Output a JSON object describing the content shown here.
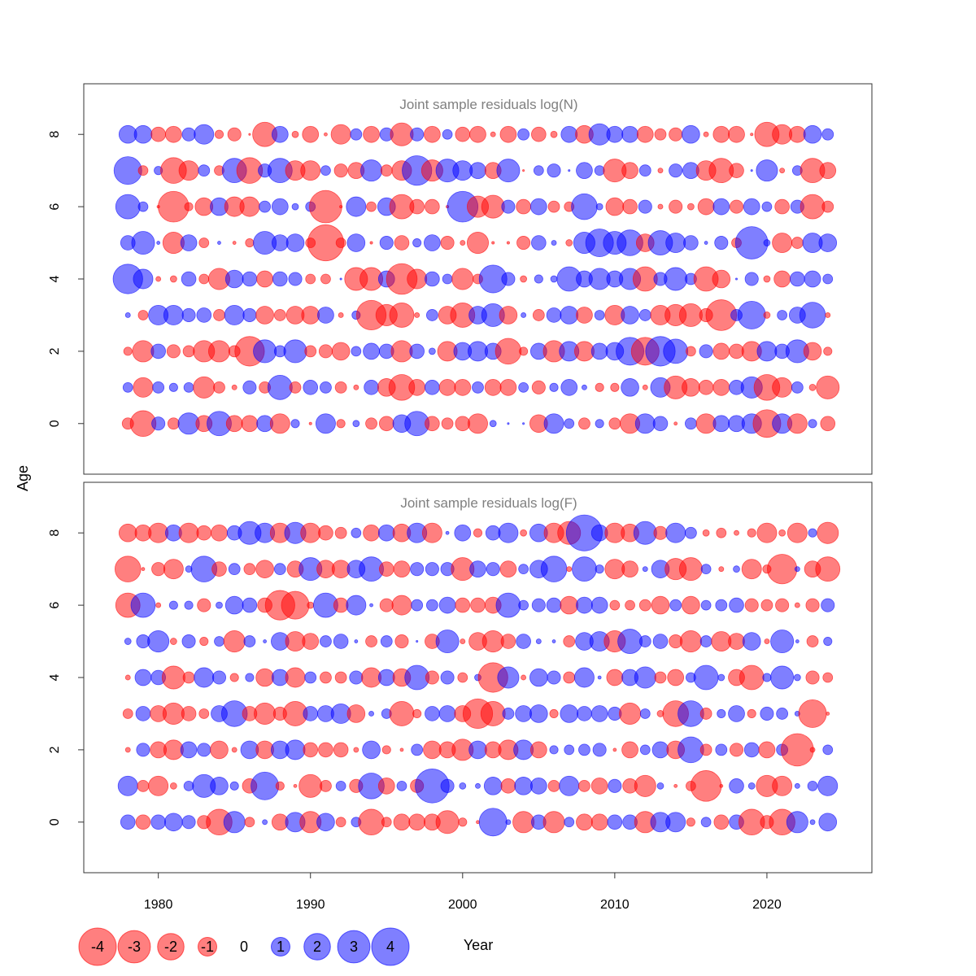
{
  "chart_data": {
    "type": "scatter",
    "subtype": "bubble",
    "xlabel": "Year",
    "ylabel": "Age",
    "xlim": [
      1975.1,
      2026.9
    ],
    "ylim": [
      -1.4,
      9.4
    ],
    "x_ticks": [
      "1980",
      "1990",
      "2000",
      "2010",
      "2020"
    ],
    "y_ticks": [
      "0",
      "2",
      "4",
      "6",
      "8"
    ],
    "years_from": 1978,
    "years_to": 2024,
    "colors": {
      "negative": "#ff0000",
      "positive": "#0000ff"
    },
    "legend": {
      "position": "bottom",
      "values": [
        "-4",
        "-3",
        "-2",
        "-1",
        "0",
        "1",
        "2",
        "3",
        "4"
      ]
    },
    "panels": [
      {
        "title": "Joint sample residuals log(N)",
        "ages": [
          [
            -0.37,
            -1.9,
            0.5,
            -0.37,
            1.3,
            -0.75,
            1.7,
            -0.75,
            -0.75,
            0.75,
            -1.1,
            0.2,
            -0.02,
            1.1,
            -0.2,
            0.12,
            -0.37,
            -0.6,
            0.9,
            1.7,
            -0.6,
            -0.37,
            -0.6,
            -1.1,
            0.12,
            0.01,
            0.01,
            -0.9,
            1.1,
            0.27,
            -0.37,
            0.2,
            -0.37,
            -1.1,
            1.1,
            0.6,
            -0.03,
            0.37,
            -1.1,
            0.75,
            0.75,
            1.1,
            -2.2,
            1.1,
            -1.1,
            0.2,
            -0.6
          ],
          [
            0.27,
            -1.1,
            0.37,
            0.2,
            0.27,
            -1.3,
            -0.37,
            -0.07,
            0.5,
            -0.37,
            1.7,
            -0.37,
            0.6,
            0.37,
            -0.37,
            -0.07,
            0.6,
            -0.9,
            -1.9,
            -0.75,
            0.6,
            -0.75,
            -0.75,
            0.37,
            -0.75,
            -0.75,
            0.27,
            -0.5,
            0.2,
            0.75,
            0.07,
            -0.2,
            -0.2,
            0.9,
            -0.07,
            1.1,
            -1.5,
            -0.9,
            -0.6,
            -0.75,
            0.6,
            1.3,
            -1.9,
            -1.1,
            0.37,
            -0.12,
            -1.5
          ],
          [
            -0.2,
            -1.3,
            0.6,
            -0.5,
            -0.37,
            -1.3,
            -1.3,
            -0.37,
            -2.5,
            1.5,
            0.37,
            1.5,
            -0.37,
            -0.5,
            -0.9,
            0.27,
            0.75,
            0.6,
            -1.3,
            0.6,
            0.12,
            -1.1,
            0.9,
            1.1,
            0.75,
            -1.9,
            -0.2,
            0.75,
            -1.3,
            1.1,
            -1.1,
            0.75,
            0.9,
            2.2,
            -2.2,
            2.5,
            1.7,
            -0.27,
            0.5,
            -0.75,
            -0.6,
            -1.1,
            1.1,
            0.6,
            1.5,
            -0.9,
            -0.2
          ],
          [
            0.07,
            -0.27,
            1.1,
            1.1,
            0.5,
            0.6,
            -0.37,
            1.1,
            0.5,
            -0.9,
            -0.37,
            -0.9,
            -0.9,
            0.75,
            -0.07,
            0.2,
            -2.5,
            -1.3,
            -1.7,
            -0.07,
            0.37,
            -0.9,
            -1.7,
            0.9,
            1.5,
            -0.9,
            0.07,
            -0.37,
            0.6,
            0.9,
            -0.75,
            0.27,
            -1.1,
            0.9,
            0.37,
            -1.1,
            -1.3,
            -1.5,
            -0.5,
            -2.7,
            0.37,
            2.2,
            -0.12,
            0.27,
            0.75,
            1.9,
            -0.07
          ],
          [
            2.5,
            1.1,
            -0.07,
            -0.12,
            0.6,
            -0.27,
            -1.3,
            0.9,
            0.6,
            -0.75,
            0.6,
            0.5,
            -0.27,
            -0.27,
            0.01,
            -1.5,
            -1.5,
            0.75,
            -2.7,
            -1.1,
            0.6,
            0.27,
            -1.3,
            -0.27,
            2.2,
            0.5,
            -0.12,
            0.2,
            0.12,
            1.7,
            0.75,
            1.3,
            0.75,
            1.3,
            -1.7,
            0.5,
            1.5,
            0.37,
            -1.7,
            -0.9,
            0.01,
            0.5,
            -0.12,
            -0.75,
            0.6,
            0.75,
            0.27
          ],
          [
            0.6,
            1.5,
            0.03,
            -1.3,
            0.75,
            -0.27,
            0.03,
            -0.03,
            -0.2,
            1.5,
            0.75,
            0.9,
            -0.27,
            -3.7,
            -0.27,
            0.9,
            -0.02,
            0.5,
            -0.6,
            0.2,
            0.75,
            -0.5,
            -0.07,
            -1.3,
            -0.02,
            -0.02,
            -0.5,
            0.6,
            0.07,
            -0.12,
            1.3,
            2.2,
            1.5,
            1.9,
            -0.9,
            1.7,
            1.1,
            0.6,
            0.03,
            0.5,
            -0.27,
            3.0,
            0.12,
            -1.1,
            -0.37,
            1.1,
            0.9
          ],
          [
            1.7,
            0.27,
            -0.02,
            -2.7,
            -0.2,
            -0.9,
            0.9,
            -1.1,
            -1.1,
            0.37,
            0.75,
            0.12,
            0.27,
            -3.0,
            -0.02,
            1.1,
            -0.27,
            0.9,
            -1.7,
            -0.6,
            -0.6,
            -0.02,
            2.7,
            -1.3,
            -1.5,
            0.5,
            -0.6,
            0.75,
            -0.37,
            -0.27,
            1.9,
            0.12,
            -0.9,
            -0.6,
            0.5,
            -0.07,
            -0.5,
            -0.12,
            -0.75,
            0.75,
            -0.5,
            0.75,
            0.27,
            -0.6,
            0.5,
            -1.7,
            -0.37
          ],
          [
            2.2,
            -0.27,
            0.2,
            -1.9,
            -1.1,
            0.37,
            -0.27,
            1.7,
            -1.9,
            0.5,
            1.7,
            -1.1,
            -1.1,
            0.27,
            -0.5,
            -0.75,
            1.3,
            -0.37,
            -1.1,
            2.5,
            -1.3,
            1.5,
            1.1,
            0.75,
            -0.75,
            1.5,
            -0.01,
            0.27,
            0.5,
            0.01,
            0.75,
            0.27,
            -1.5,
            -0.75,
            0.37,
            -0.07,
            0.5,
            0.75,
            -1.1,
            -1.7,
            -0.6,
            0.01,
            1.3,
            -0.07,
            0.27,
            -1.7,
            -0.75
          ],
          [
            0.9,
            0.9,
            -0.6,
            -0.75,
            0.5,
            1.1,
            -0.2,
            -0.5,
            -0.01,
            -1.7,
            0.75,
            -0.12,
            -0.75,
            -0.03,
            -1.1,
            0.37,
            -0.75,
            0.5,
            -1.5,
            0.5,
            -0.75,
            0.27,
            -0.6,
            -0.75,
            -0.07,
            -0.75,
            0.37,
            -0.6,
            -0.12,
            0.75,
            -0.9,
            1.3,
            0.75,
            0.75,
            -0.75,
            -0.37,
            -0.5,
            0.9,
            -0.07,
            -0.75,
            -0.75,
            -0.02,
            -1.7,
            -1.1,
            -0.75,
            0.9,
            0.37
          ]
        ]
      },
      {
        "title": "Joint sample residuals log(F)",
        "ages": [
          [
            0.6,
            -0.6,
            0.6,
            0.9,
            0.5,
            -0.5,
            -1.9,
            1.3,
            -0.27,
            0.07,
            -0.75,
            1.1,
            -1.3,
            0.9,
            -0.27,
            0.27,
            -1.9,
            -0.27,
            -0.75,
            -0.75,
            -0.75,
            -1.5,
            -0.2,
            -0.03,
            2.2,
            0.07,
            -1.3,
            0.6,
            -1.3,
            0.27,
            -0.75,
            -0.75,
            0.6,
            0.6,
            -1.3,
            1.1,
            1.1,
            -0.2,
            0.27,
            -0.6,
            0.6,
            -1.9,
            -0.5,
            -1.9,
            1.3,
            0.07,
            0.9
          ],
          [
            1.1,
            -0.37,
            -1.1,
            -0.12,
            0.27,
            1.5,
            0.9,
            0.2,
            -0.6,
            2.2,
            -0.2,
            -0.03,
            -1.5,
            -0.37,
            0.27,
            -0.5,
            1.9,
            -0.75,
            0.27,
            -0.5,
            3.3,
            0.5,
            0.12,
            0.07,
            0.9,
            -0.6,
            0.9,
            0.75,
            -0.37,
            1.1,
            -0.37,
            -0.75,
            0.5,
            -0.6,
            -1.3,
            0.12,
            -0.03,
            -0.27,
            -2.7,
            -0.03,
            0.6,
            0.12,
            -1.3,
            -1.1,
            0.07,
            0.27,
            1.1
          ],
          [
            -0.07,
            0.5,
            -0.75,
            -1.1,
            0.75,
            0.5,
            -0.9,
            -0.07,
            0.9,
            -0.9,
            0.9,
            1.1,
            -0.6,
            -0.6,
            -0.6,
            -0.07,
            0.9,
            -0.2,
            -0.03,
            0.37,
            -0.9,
            -0.75,
            -1.3,
            0.9,
            -0.75,
            -1.1,
            1.1,
            -0.75,
            0.2,
            0.27,
            0.37,
            0.5,
            -0.03,
            -0.75,
            0.27,
            0.75,
            -0.9,
            1.9,
            -0.37,
            0.37,
            -0.5,
            0.6,
            -0.75,
            0.37,
            -3.0,
            -0.07,
            0.27
          ],
          [
            -0.27,
            0.6,
            -0.75,
            -1.3,
            -0.6,
            -0.27,
            0.75,
            1.9,
            -0.6,
            -1.3,
            -0.5,
            -1.7,
            0.6,
            0.75,
            1.1,
            -0.9,
            0.07,
            0.27,
            -1.7,
            -0.2,
            0.6,
            0.75,
            -0.75,
            -2.5,
            -1.7,
            0.37,
            0.75,
            0.9,
            -0.2,
            0.9,
            0.6,
            0.75,
            0.5,
            -1.3,
            0.27,
            -0.12,
            -1.9,
            1.9,
            -0.37,
            0.2,
            0.75,
            -0.2,
            0.5,
            0.37,
            0.07,
            -2.2,
            -0.03
          ],
          [
            -0.07,
            0.75,
            0.6,
            -1.5,
            -0.37,
            1.1,
            0.5,
            -0.2,
            0.2,
            -0.9,
            0.75,
            -1.1,
            0.37,
            -0.37,
            -0.37,
            0.5,
            -1.1,
            0.75,
            -0.9,
            1.7,
            -0.5,
            0.5,
            -0.27,
            0.12,
            -2.5,
            1.3,
            -0.07,
            0.9,
            0.5,
            -0.37,
            1.1,
            0.03,
            -0.75,
            0.75,
            1.3,
            -0.37,
            -0.75,
            0.27,
            1.7,
            0.12,
            -0.75,
            -1.7,
            0.2,
            1.5,
            0.12,
            -0.5,
            -0.27
          ],
          [
            0.12,
            0.5,
            1.3,
            -0.12,
            0.5,
            -0.2,
            0.27,
            -1.3,
            0.37,
            0.03,
            0.9,
            -1.1,
            -0.75,
            0.37,
            0.6,
            0.03,
            -0.37,
            0.37,
            -0.5,
            0.01,
            -0.6,
            1.5,
            -0.07,
            -0.9,
            -1.3,
            -0.6,
            0.6,
            0.07,
            0.03,
            -0.37,
            0.9,
            1.1,
            -1.3,
            1.7,
            0.37,
            0.6,
            -0.5,
            -1.3,
            0.37,
            -1.1,
            -0.75,
            0.9,
            -0.07,
            1.5,
            0.03,
            -0.37,
            0.2
          ],
          [
            -1.7,
            1.7,
            -0.07,
            0.2,
            0.2,
            -0.5,
            0.12,
            0.9,
            0.6,
            -0.6,
            -2.5,
            -2.2,
            -0.12,
            1.7,
            -0.6,
            1.1,
            0.03,
            -0.5,
            -1.1,
            0.37,
            0.37,
            0.75,
            -0.6,
            -0.6,
            -0.75,
            1.7,
            0.27,
            0.5,
            0.6,
            -0.9,
            0.75,
            0.75,
            -0.27,
            -0.27,
            -0.37,
            -0.9,
            0.37,
            -0.9,
            0.27,
            0.37,
            0.6,
            -0.5,
            -0.37,
            -0.5,
            -0.07,
            -0.5,
            0.5
          ],
          [
            -1.9,
            -0.03,
            -0.5,
            -1.1,
            0.12,
            1.9,
            -0.6,
            0.37,
            -0.37,
            -0.9,
            0.37,
            -0.75,
            1.5,
            -0.9,
            -0.9,
            0.9,
            1.7,
            -0.6,
            -0.75,
            0.5,
            0.5,
            0.5,
            -1.5,
            0.75,
            0.5,
            -0.75,
            0.27,
            0.9,
            1.9,
            -0.07,
            1.7,
            0.2,
            -1.1,
            -0.75,
            0.07,
            0.9,
            -1.3,
            -1.5,
            0.27,
            -0.07,
            0.12,
            -1.1,
            -0.2,
            -2.5,
            0.07,
            -0.75,
            -1.7
          ],
          [
            -0.9,
            -0.75,
            -1.1,
            0.75,
            -1.1,
            -0.6,
            -0.75,
            0.6,
            1.5,
            1.1,
            -1.1,
            1.3,
            -1.1,
            -0.6,
            -0.37,
            0.27,
            -0.75,
            0.75,
            -0.9,
            1.1,
            -1.1,
            0.03,
            0.75,
            -0.2,
            0.6,
            1.1,
            -0.12,
            0.9,
            -1.1,
            -1.5,
            3.7,
            0.75,
            -1.1,
            -0.9,
            1.5,
            -0.5,
            1.1,
            0.37,
            -0.12,
            -0.27,
            -0.07,
            -0.2,
            -1.1,
            -0.12,
            -1.1,
            0.2,
            -1.3
          ]
        ]
      }
    ]
  }
}
